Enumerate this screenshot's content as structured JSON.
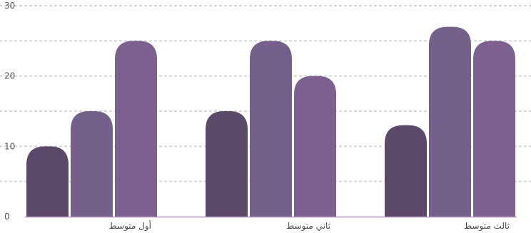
{
  "chart_data": {
    "type": "bar",
    "title": "",
    "xlabel": "",
    "ylabel": "",
    "ylim": [
      0,
      30
    ],
    "yticks": [
      "0",
      "10",
      "20",
      "30"
    ],
    "grid": true,
    "legend": "none",
    "categories": [
      "أول متوسط",
      "ثاني متوسط",
      "ثالث متوسط"
    ],
    "series": [
      {
        "values": [
          10,
          15,
          13
        ],
        "color": "#5c4868"
      },
      {
        "values": [
          15,
          25,
          27
        ],
        "color": "#75608b"
      },
      {
        "values": [
          25,
          20,
          25
        ],
        "color": "#7c6190"
      }
    ],
    "colors": {
      "grid": "#d0d0d0",
      "axis": "#b38fc7",
      "ticks": "#555555"
    }
  }
}
